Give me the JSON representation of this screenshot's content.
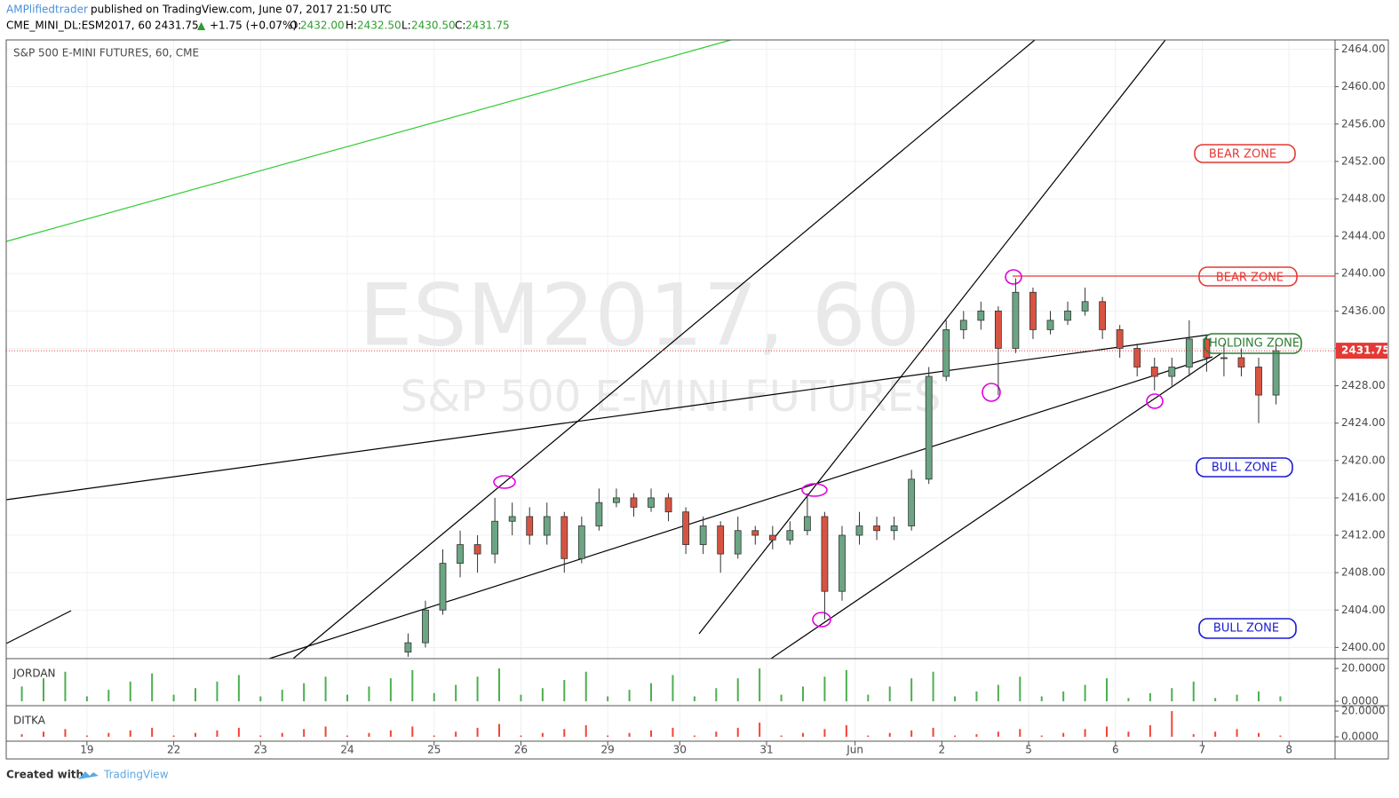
{
  "header": {
    "author": "AMPlifiedtrader",
    "published": "published on TradingView.com, June 07, 2017 21:50 UTC",
    "symbol": "CME_MINI_DL:ESM2017, 60",
    "last": "2431.75",
    "arrow": "▲",
    "change": "+1.75 (+0.07%)",
    "o_label": "O:",
    "o": "2432.00",
    "h_label": "H:",
    "h": "2432.50",
    "l_label": "L:",
    "l": "2430.50",
    "c_label": "C:",
    "c": "2431.75"
  },
  "footer": {
    "created": "Created with",
    "brand": "TradingView"
  },
  "chart_data": {
    "type": "candlestick",
    "title": "S&P 500 E-MINI FUTURES, 60, CME",
    "watermark": "ESM2017, 60",
    "watermark_subtitle": "S&P 500 E-MINI FUTURES",
    "up_color": "#6ba583",
    "down_color": "#d75442",
    "grid": true,
    "x": [
      3.7,
      3.9,
      4.1,
      4.3,
      4.5,
      4.7,
      4.9,
      5.1,
      5.3,
      5.5,
      5.7,
      5.9,
      6.1,
      6.3,
      6.5,
      6.7,
      6.9,
      7.1,
      7.3,
      7.5,
      7.7,
      7.9,
      8.1,
      8.3,
      8.5,
      8.7,
      8.9,
      9.1,
      9.3,
      9.5,
      9.7,
      9.9,
      10.1,
      10.3,
      10.5,
      10.7,
      10.9,
      11.1,
      11.3,
      11.5,
      11.7,
      11.9,
      12.1,
      12.3,
      12.5,
      12.7,
      12.9,
      13.1,
      13.3,
      13.5,
      13.7
    ],
    "open": [
      2399.5,
      2400.5,
      2404,
      2409,
      2411,
      2410,
      2413.5,
      2414,
      2412,
      2414,
      2409.5,
      2413,
      2415.5,
      2416,
      2415,
      2416,
      2414.5,
      2411,
      2413,
      2410,
      2412.5,
      2412,
      2411.5,
      2412.5,
      2414,
      2406,
      2412,
      2413,
      2412.5,
      2413,
      2418,
      2429,
      2434,
      2435,
      2436,
      2432,
      2438,
      2434,
      2435,
      2436,
      2437,
      2434,
      2432,
      2430,
      2429,
      2430,
      2433,
      2431,
      2431,
      2430,
      2427
    ],
    "high": [
      2401.5,
      2405,
      2410.5,
      2412.5,
      2412,
      2416,
      2415.5,
      2415,
      2415.5,
      2414.5,
      2414,
      2417,
      2417,
      2416.5,
      2417,
      2416.5,
      2415,
      2414,
      2413.5,
      2414,
      2413,
      2413,
      2413.5,
      2416.5,
      2414.5,
      2413,
      2414.5,
      2414,
      2414,
      2419,
      2430,
      2435,
      2436,
      2437,
      2436.5,
      2439.5,
      2438.5,
      2436,
      2437,
      2438.5,
      2437.5,
      2434.5,
      2432.5,
      2431,
      2431,
      2435,
      2433.5,
      2432.5,
      2432,
      2431,
      2432.5
    ],
    "low": [
      2399,
      2400,
      2403.5,
      2407.5,
      2408,
      2409,
      2412,
      2411,
      2411,
      2408,
      2409,
      2412.5,
      2415,
      2414,
      2414.5,
      2413.5,
      2410,
      2410,
      2408,
      2409.5,
      2411,
      2410.5,
      2411,
      2412,
      2403,
      2405,
      2411,
      2411.5,
      2411.5,
      2412.5,
      2417.5,
      2428.5,
      2433,
      2434,
      2427,
      2431.5,
      2433,
      2433.5,
      2434.5,
      2435.5,
      2433,
      2431,
      2429,
      2427.5,
      2428,
      2429,
      2429.5,
      2429,
      2429,
      2424,
      2426
    ],
    "close": [
      2400.5,
      2404,
      2409,
      2411,
      2410,
      2413.5,
      2414,
      2412,
      2414,
      2409.5,
      2413,
      2415.5,
      2416,
      2415,
      2416,
      2414.5,
      2411,
      2413,
      2410,
      2412.5,
      2412,
      2411.5,
      2412.5,
      2414,
      2406,
      2412,
      2413,
      2412.5,
      2413,
      2418,
      2429,
      2434,
      2435,
      2436,
      2432,
      2438,
      2434,
      2435,
      2436,
      2437,
      2434,
      2432,
      2430,
      2429,
      2430,
      2433,
      2431,
      2431,
      2430,
      2427,
      2431.75
    ],
    "last_price": 2431.75,
    "xlim": [
      -0.93,
      14.38
    ],
    "xticks": [
      {
        "value": 0,
        "label": "19"
      },
      {
        "value": 1,
        "label": "22"
      },
      {
        "value": 2,
        "label": "23"
      },
      {
        "value": 3,
        "label": "24"
      },
      {
        "value": 4,
        "label": "25"
      },
      {
        "value": 5,
        "label": "26"
      },
      {
        "value": 6,
        "label": "29"
      },
      {
        "value": 6.83,
        "label": "30"
      },
      {
        "value": 7.83,
        "label": "31"
      },
      {
        "value": 8.85,
        "label": "Jun"
      },
      {
        "value": 9.85,
        "label": "2"
      },
      {
        "value": 10.85,
        "label": "5"
      },
      {
        "value": 11.85,
        "label": "6"
      },
      {
        "value": 12.85,
        "label": "7"
      },
      {
        "value": 13.85,
        "label": "8"
      }
    ],
    "ylim": [
      2398.8,
      2465
    ],
    "yticks": [
      {
        "value": 2400,
        "label": "2400.00"
      },
      {
        "value": 2404,
        "label": "2404.00"
      },
      {
        "value": 2408,
        "label": "2408.00"
      },
      {
        "value": 2412,
        "label": "2412.00"
      },
      {
        "value": 2416,
        "label": "2416.00"
      },
      {
        "value": 2420,
        "label": "2420.00"
      },
      {
        "value": 2424,
        "label": "2424.00"
      },
      {
        "value": 2428,
        "label": "2428.00"
      },
      {
        "value": 2432,
        "label": "2432.00"
      },
      {
        "value": 2436,
        "label": "2436.00"
      },
      {
        "value": 2440,
        "label": "2440.00"
      },
      {
        "value": 2444,
        "label": "2444.00"
      },
      {
        "value": 2448,
        "label": "2448.00"
      },
      {
        "value": 2452,
        "label": "2452.00"
      },
      {
        "value": 2456,
        "label": "2456.00"
      },
      {
        "value": 2460,
        "label": "2460.00"
      },
      {
        "value": 2464,
        "label": "2464.00"
      }
    ],
    "annotations": [
      "BEAR ZONE",
      "BEAR ZONE",
      "HOLDING ZONE",
      "BULL ZONE",
      "BULL ZONE"
    ],
    "indicators": [
      {
        "name": "JORDAN",
        "color": "#4caf50",
        "ylim": [
          -1.6,
          24.9
        ],
        "yticks": [
          {
            "value": 20,
            "label": "20.0000"
          },
          {
            "value": 0,
            "label": "0.0000"
          }
        ],
        "x": [
          -0.75,
          -0.5,
          -0.25,
          0,
          0.25,
          0.5,
          0.75,
          1,
          1.25,
          1.5,
          1.75,
          2,
          2.25,
          2.5,
          2.75,
          3,
          3.25,
          3.5,
          3.75,
          4,
          4.25,
          4.5,
          4.75,
          5,
          5.25,
          5.5,
          5.75,
          6,
          6.25,
          6.5,
          6.75,
          7,
          7.25,
          7.5,
          7.75,
          8,
          8.25,
          8.5,
          8.75,
          9,
          9.25,
          9.5,
          9.75,
          10,
          10.25,
          10.5,
          10.75,
          11,
          11.25,
          11.5,
          11.75,
          12,
          12.25,
          12.5,
          12.75,
          13,
          13.25,
          13.5,
          13.75
        ],
        "values": [
          9,
          14,
          18,
          3,
          7,
          12,
          17,
          4,
          8,
          12,
          16,
          3,
          7,
          11,
          15,
          4,
          9,
          14,
          19,
          5,
          10,
          15,
          20,
          4,
          8,
          13,
          18,
          3,
          7,
          11,
          16,
          3,
          8,
          14,
          20,
          4,
          9,
          15,
          19,
          4,
          9,
          14,
          18,
          3,
          6,
          10,
          15,
          3,
          6,
          10,
          14,
          2,
          5,
          8,
          12,
          2,
          4,
          6,
          3
        ]
      },
      {
        "name": "DITKA",
        "color": "#f44336",
        "ylim": [
          -3.4,
          22.8
        ],
        "yticks": [
          {
            "value": 20,
            "label": "20.0000"
          },
          {
            "value": 0,
            "label": "0.0000"
          }
        ],
        "x": [
          -0.75,
          -0.5,
          -0.25,
          0,
          0.25,
          0.5,
          0.75,
          1,
          1.25,
          1.5,
          1.75,
          2,
          2.25,
          2.5,
          2.75,
          3,
          3.25,
          3.5,
          3.75,
          4,
          4.25,
          4.5,
          4.75,
          5,
          5.25,
          5.5,
          5.75,
          6,
          6.25,
          6.5,
          6.75,
          7,
          7.25,
          7.5,
          7.75,
          8,
          8.25,
          8.5,
          8.75,
          9,
          9.25,
          9.5,
          9.75,
          10,
          10.25,
          10.5,
          10.75,
          11,
          11.25,
          11.5,
          11.75,
          12,
          12.25,
          12.5,
          12.75,
          13,
          13.25,
          13.5,
          13.75
        ],
        "values": [
          2,
          4,
          6,
          1,
          3,
          5,
          7,
          1,
          3,
          5,
          7,
          1,
          3,
          6,
          8,
          1,
          3,
          5,
          8,
          1,
          4,
          7,
          10,
          1,
          3,
          6,
          9,
          1,
          3,
          5,
          7,
          1,
          4,
          7,
          11,
          1,
          3,
          6,
          9,
          1,
          3,
          5,
          7,
          1,
          2,
          4,
          6,
          1,
          3,
          6,
          8,
          4,
          9,
          20,
          2,
          4,
          6,
          3,
          1
        ]
      }
    ]
  }
}
